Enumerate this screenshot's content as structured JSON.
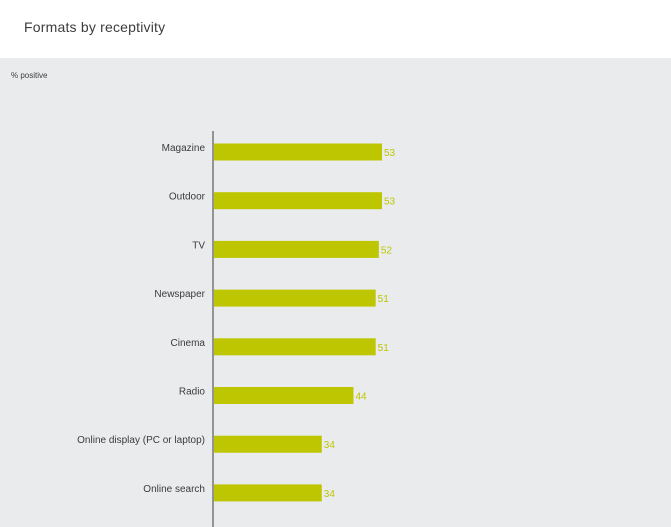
{
  "title": "Formats by receptivity",
  "colors": {
    "bar": "#bdc600",
    "axis": "#3c3c3c",
    "panel": "#eaebec"
  },
  "chart_data": {
    "type": "bar",
    "orientation": "horizontal",
    "unit_label": "% positive",
    "categories": [
      "Magazine",
      "Outdoor",
      "TV",
      "Newspaper",
      "Cinema",
      "Radio",
      "Online display (PC or laptop)",
      "Online search"
    ],
    "values": [
      53,
      53,
      52,
      51,
      51,
      44,
      34,
      34
    ],
    "xlim": [
      0,
      100
    ],
    "grid": false,
    "legend": "none"
  }
}
